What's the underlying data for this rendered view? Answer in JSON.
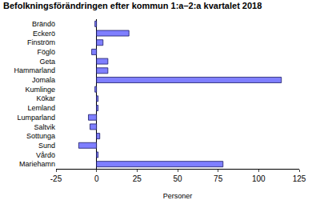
{
  "chart_data": {
    "type": "bar",
    "orientation": "horizontal",
    "title": "Befolkningsförändringen efter kommun 1:a–2:a kvartalet 2018",
    "x_label": "Personer",
    "categories": [
      "Brändö",
      "Eckerö",
      "Finström",
      "Föglö",
      "Geta",
      "Hammarland",
      "Jomala",
      "Kumlinge",
      "Kökar",
      "Lemland",
      "Lumparland",
      "Saltvik",
      "Sottunga",
      "Sund",
      "Vårdö",
      "Mariehamn"
    ],
    "values": [
      -1,
      20,
      4,
      -3,
      7,
      7,
      114,
      -1,
      1,
      1,
      -5,
      -4,
      2,
      -11,
      1,
      78
    ],
    "color": "#7f7fff",
    "xlim": [
      -25,
      125
    ],
    "xticks": [
      -25,
      0,
      25,
      50,
      75,
      100,
      125
    ],
    "grid": false
  }
}
